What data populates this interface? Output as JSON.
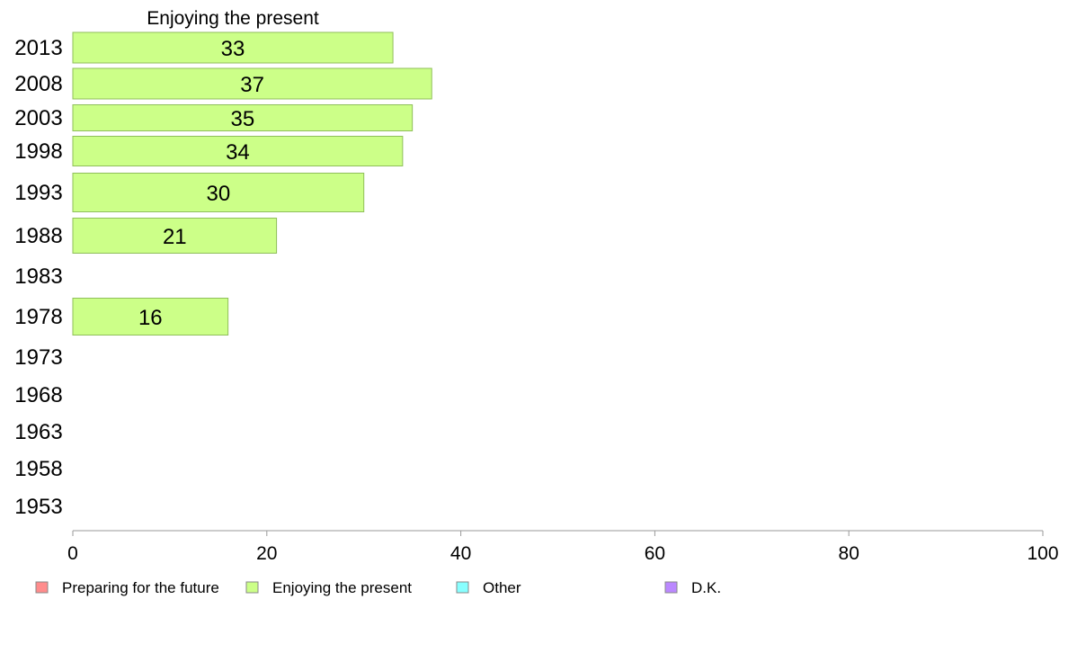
{
  "chart_data": {
    "type": "bar",
    "orientation": "horizontal",
    "title": "Enjoying the present",
    "categories": [
      "2013",
      "2008",
      "2003",
      "1998",
      "1993",
      "1988",
      "1983",
      "1978",
      "1973",
      "1968",
      "1963",
      "1958",
      "1953"
    ],
    "series": [
      {
        "name": "Enjoying the present",
        "values": [
          33,
          37,
          35,
          34,
          30,
          21,
          null,
          16,
          null,
          null,
          null,
          null,
          null
        ]
      }
    ],
    "xlim": [
      0,
      100
    ],
    "xticks": [
      0,
      20,
      40,
      60,
      80,
      100
    ],
    "grid": false,
    "legend_placement": "bottom",
    "legend": [
      {
        "label": "Preparing for the future",
        "color": "#ff8c8c"
      },
      {
        "label": "Enjoying the present",
        "color": "#ccff88"
      },
      {
        "label": "Other",
        "color": "#88ffff"
      },
      {
        "label": "D.K.",
        "color": "#bb88ff"
      }
    ],
    "bar_color": "#ccff88",
    "bar_stroke": "#8fbf5a"
  }
}
